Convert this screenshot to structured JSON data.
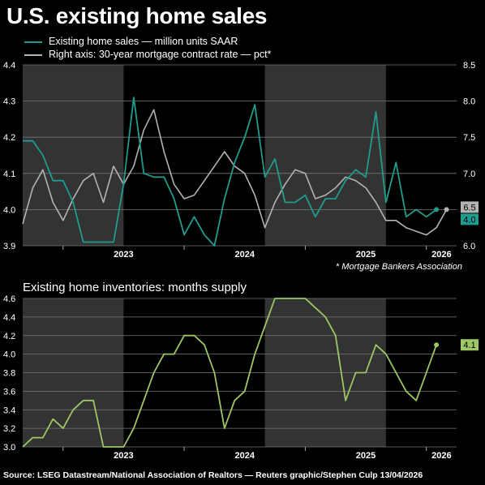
{
  "title": "U.S. existing home sales",
  "subtitle": "Existing home inventories: months supply",
  "footnote": "* Mortgage Bankers Association",
  "source": "Source: LSEG Datastream/National Association of Realtors  — Reuters graphic/Stephen Culp 13/04/2026",
  "legend": {
    "sales": "Existing home sales — million units SAAR",
    "rate": "Right axis: 30-year mortgage contract rate — pct*"
  },
  "colors": {
    "background": "#000000",
    "sales": "#1f9c8e",
    "rate": "#b3b3b3",
    "inventory": "#9cc764",
    "shade": "#333333"
  },
  "chart_data": [
    {
      "type": "line",
      "x_tick_labels": [
        "2023",
        "2024",
        "2025",
        "2026"
      ],
      "x_range": [
        "2022-09",
        "2026-04"
      ],
      "shaded_periods": [
        [
          "2022-09",
          "2023-07"
        ],
        [
          "2024-09",
          "2025-09"
        ]
      ],
      "ylim_left": [
        3.9,
        4.4
      ],
      "yticks_left": [
        "3.9",
        "4.0",
        "4.1",
        "4.2",
        "4.3",
        "4.4"
      ],
      "ylim_right": [
        6.0,
        8.5
      ],
      "yticks_right": [
        "6.0",
        "6.5",
        "7.0",
        "7.5",
        "8.0",
        "8.5"
      ],
      "grid": true,
      "end_labels": {
        "sales": "4.0",
        "rate": "6.5"
      },
      "series": [
        {
          "name": "Existing home sales — million units SAAR",
          "axis": "left",
          "x": [
            "2022-09",
            "2022-10",
            "2022-11",
            "2022-12",
            "2023-01",
            "2023-02",
            "2023-03",
            "2023-04",
            "2023-05",
            "2023-06",
            "2023-07",
            "2023-08",
            "2023-09",
            "2023-10",
            "2023-11",
            "2023-12",
            "2024-01",
            "2024-02",
            "2024-03",
            "2024-04",
            "2024-05",
            "2024-06",
            "2024-07",
            "2024-08",
            "2024-09",
            "2024-10",
            "2024-11",
            "2024-12",
            "2025-01",
            "2025-02",
            "2025-03",
            "2025-04",
            "2025-05",
            "2025-06",
            "2025-07",
            "2025-08",
            "2025-09",
            "2025-10",
            "2025-11",
            "2025-12",
            "2026-01",
            "2026-02"
          ],
          "values": [
            4.19,
            4.19,
            4.15,
            4.08,
            4.08,
            4.02,
            3.91,
            3.91,
            3.91,
            3.91,
            4.07,
            4.31,
            4.1,
            4.09,
            4.09,
            4.03,
            3.93,
            3.98,
            3.93,
            3.9,
            4.03,
            4.13,
            4.2,
            4.29,
            4.09,
            4.14,
            4.02,
            4.02,
            4.04,
            3.98,
            4.03,
            4.03,
            4.08,
            4.11,
            4.09,
            4.27,
            4.02,
            4.13,
            3.98,
            4.0,
            3.98,
            4.0
          ]
        },
        {
          "name": "Right axis: 30-year mortgage contract rate — pct*",
          "axis": "right",
          "x": [
            "2022-09",
            "2022-10",
            "2022-11",
            "2022-12",
            "2023-01",
            "2023-02",
            "2023-03",
            "2023-04",
            "2023-05",
            "2023-06",
            "2023-07",
            "2023-08",
            "2023-09",
            "2023-10",
            "2023-11",
            "2023-12",
            "2024-01",
            "2024-02",
            "2024-03",
            "2024-04",
            "2024-05",
            "2024-06",
            "2024-07",
            "2024-08",
            "2024-09",
            "2024-10",
            "2024-11",
            "2024-12",
            "2025-01",
            "2025-02",
            "2025-03",
            "2025-04",
            "2025-05",
            "2025-06",
            "2025-07",
            "2025-08",
            "2025-09",
            "2025-10",
            "2025-11",
            "2025-12",
            "2026-01",
            "2026-02",
            "2026-03"
          ],
          "values": [
            6.3,
            6.8,
            7.05,
            6.6,
            6.35,
            6.65,
            6.9,
            7.0,
            6.6,
            7.1,
            6.85,
            7.1,
            7.6,
            7.88,
            7.3,
            6.85,
            6.65,
            6.7,
            6.9,
            7.1,
            7.3,
            7.1,
            7.0,
            6.7,
            6.25,
            6.6,
            6.85,
            7.05,
            7.0,
            6.65,
            6.7,
            6.8,
            6.95,
            6.9,
            6.8,
            6.6,
            6.35,
            6.35,
            6.25,
            6.2,
            6.15,
            6.25,
            6.5
          ]
        }
      ]
    },
    {
      "type": "line",
      "title": "Existing home inventories: months supply",
      "x_tick_labels": [
        "2023",
        "2024",
        "2025",
        "2026"
      ],
      "ylim": [
        3.0,
        4.6
      ],
      "yticks": [
        "3.0",
        "3.2",
        "3.4",
        "3.6",
        "3.8",
        "4.0",
        "4.2",
        "4.4",
        "4.6"
      ],
      "grid": true,
      "end_label": "4.1",
      "series": [
        {
          "name": "Existing home inventories: months supply",
          "x": [
            "2022-09",
            "2022-10",
            "2022-11",
            "2022-12",
            "2023-01",
            "2023-02",
            "2023-03",
            "2023-04",
            "2023-05",
            "2023-06",
            "2023-07",
            "2023-08",
            "2023-09",
            "2023-10",
            "2023-11",
            "2023-12",
            "2024-01",
            "2024-02",
            "2024-03",
            "2024-04",
            "2024-05",
            "2024-06",
            "2024-07",
            "2024-08",
            "2024-09",
            "2024-10",
            "2024-11",
            "2024-12",
            "2025-01",
            "2025-02",
            "2025-03",
            "2025-04",
            "2025-05",
            "2025-06",
            "2025-07",
            "2025-08",
            "2025-09",
            "2025-10",
            "2025-11",
            "2025-12",
            "2026-01",
            "2026-02"
          ],
          "values": [
            3.0,
            3.1,
            3.1,
            3.3,
            3.2,
            3.4,
            3.5,
            3.5,
            3.0,
            3.0,
            3.0,
            3.2,
            3.5,
            3.8,
            4.0,
            4.0,
            4.2,
            4.2,
            4.1,
            3.8,
            3.2,
            3.5,
            3.6,
            4.0,
            4.3,
            4.6,
            4.6,
            4.6,
            4.6,
            4.5,
            4.4,
            4.2,
            3.5,
            3.8,
            3.8,
            4.1,
            4.0,
            3.8,
            3.6,
            3.5,
            3.8,
            4.1
          ]
        }
      ]
    }
  ]
}
